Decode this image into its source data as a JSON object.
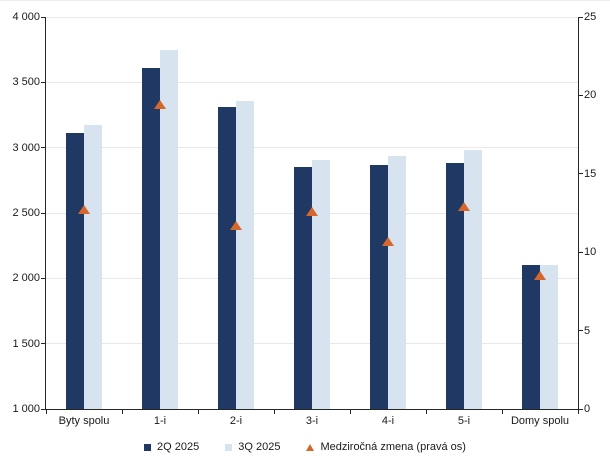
{
  "chart_data": {
    "type": "bar",
    "title": "",
    "categories": [
      "Byty spolu",
      "1-i",
      "2-i",
      "3-i",
      "4-i",
      "5-i",
      "Domy spolu"
    ],
    "series": [
      {
        "name": "2Q 2025",
        "type": "bar",
        "axis": "left",
        "color": "#1f3864",
        "values": [
          3110,
          3610,
          3310,
          2850,
          2870,
          2880,
          2100
        ]
      },
      {
        "name": "3Q 2025",
        "type": "bar",
        "axis": "left",
        "color": "#d7e4f0",
        "values": [
          3175,
          3745,
          3360,
          2905,
          2940,
          2985,
          2105
        ]
      },
      {
        "name": "Medziročná zmena (pravá os)",
        "type": "triangle-marker",
        "axis": "right",
        "color": "#d5672d",
        "values": [
          12.7,
          19.4,
          11.7,
          12.6,
          10.7,
          12.9,
          8.5
        ]
      }
    ],
    "left_axis": {
      "min": 1000,
      "max": 4000,
      "step": 500,
      "tick_labels": [
        "4 000",
        "3 500",
        "3 000",
        "2 500",
        "2 000",
        "1 500",
        "1 000"
      ]
    },
    "right_axis": {
      "min": 0,
      "max": 25,
      "step": 5,
      "tick_labels": [
        "25",
        "20",
        "15",
        "10",
        "5",
        "0"
      ]
    },
    "grid": true,
    "legend_position": "bottom",
    "xlabel": "",
    "ylabel": ""
  },
  "colors": {
    "grid": "#e9e9e9",
    "axis": "#262626",
    "text": "#1a1a1a",
    "background": "#ffffff"
  }
}
